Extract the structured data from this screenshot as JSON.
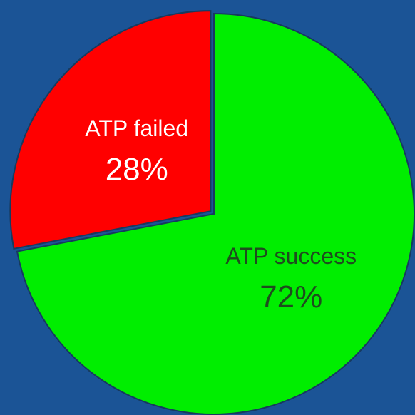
{
  "chart_data": {
    "type": "pie",
    "categories": [
      "ATP success",
      "ATP failed"
    ],
    "values": [
      72,
      28
    ],
    "value_labels": [
      "72%",
      "28%"
    ],
    "colors": [
      "#00ee00",
      "#ff0000"
    ],
    "label_colors": [
      "#1e4d1e",
      "#ffffff"
    ],
    "explode": [
      false,
      true
    ]
  }
}
